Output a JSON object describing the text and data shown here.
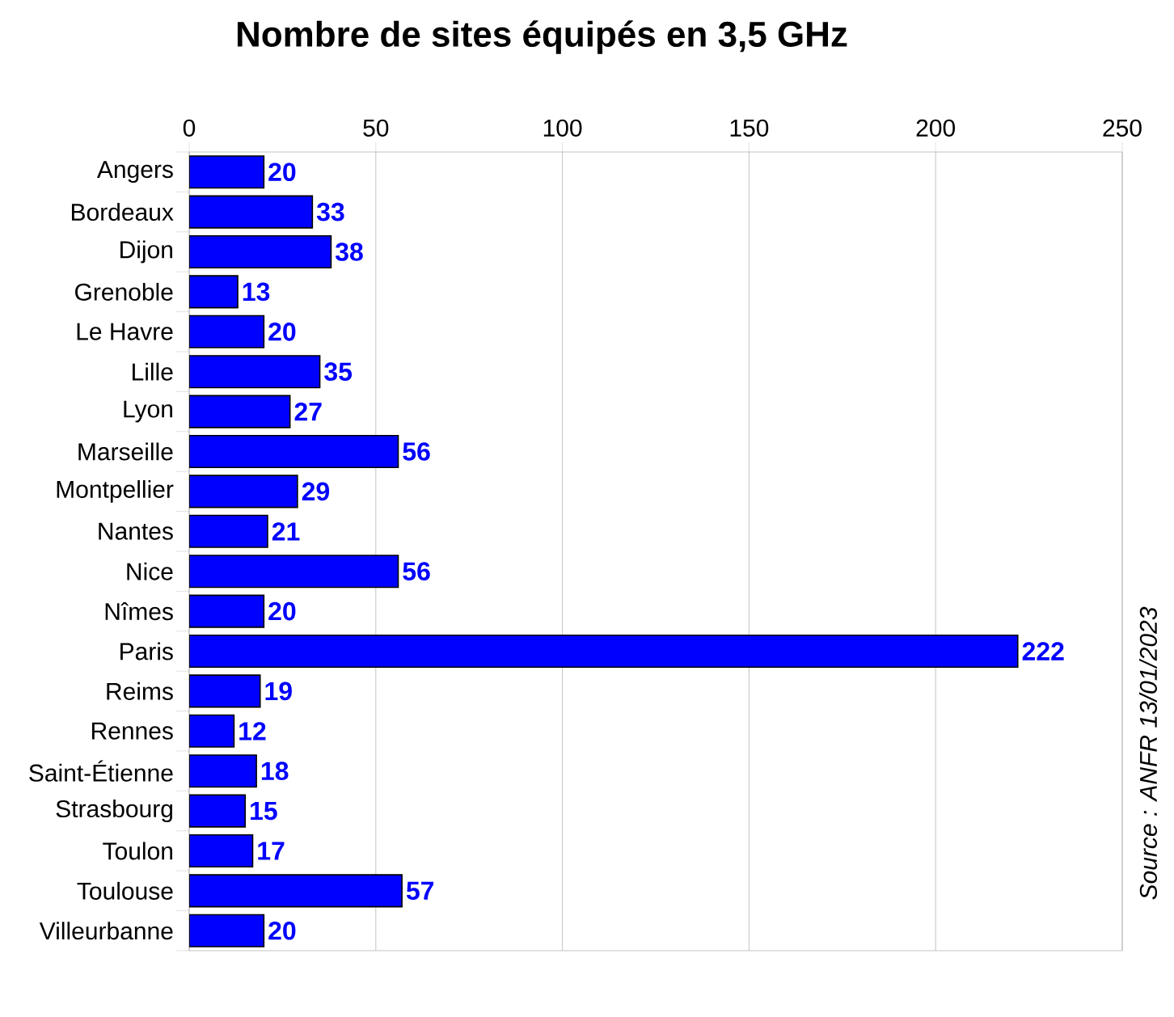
{
  "chart_data": {
    "type": "bar",
    "orientation": "horizontal",
    "title": "Nombre de sites équipés en 3,5 GHz",
    "categories": [
      "Angers",
      "Bordeaux",
      "Dijon",
      "Grenoble",
      "Le Havre",
      "Lille",
      "Lyon",
      "Marseille",
      "Montpellier",
      "Nantes",
      "Nice",
      "Nîmes",
      "Paris",
      "Reims",
      "Rennes",
      "Saint-Étienne",
      "Strasbourg",
      "Toulon",
      "Toulouse",
      "Villeurbanne"
    ],
    "values": [
      20,
      33,
      38,
      13,
      20,
      35,
      27,
      56,
      29,
      21,
      56,
      20,
      222,
      19,
      12,
      18,
      15,
      17,
      57,
      20
    ],
    "color": "#0000ff",
    "xlim": [
      0,
      250
    ],
    "xticks": [
      0,
      50,
      100,
      150,
      200,
      250
    ],
    "grid": "x",
    "data_labels": true,
    "annotations": [
      "Source : ANFR 13/01/2023"
    ]
  }
}
